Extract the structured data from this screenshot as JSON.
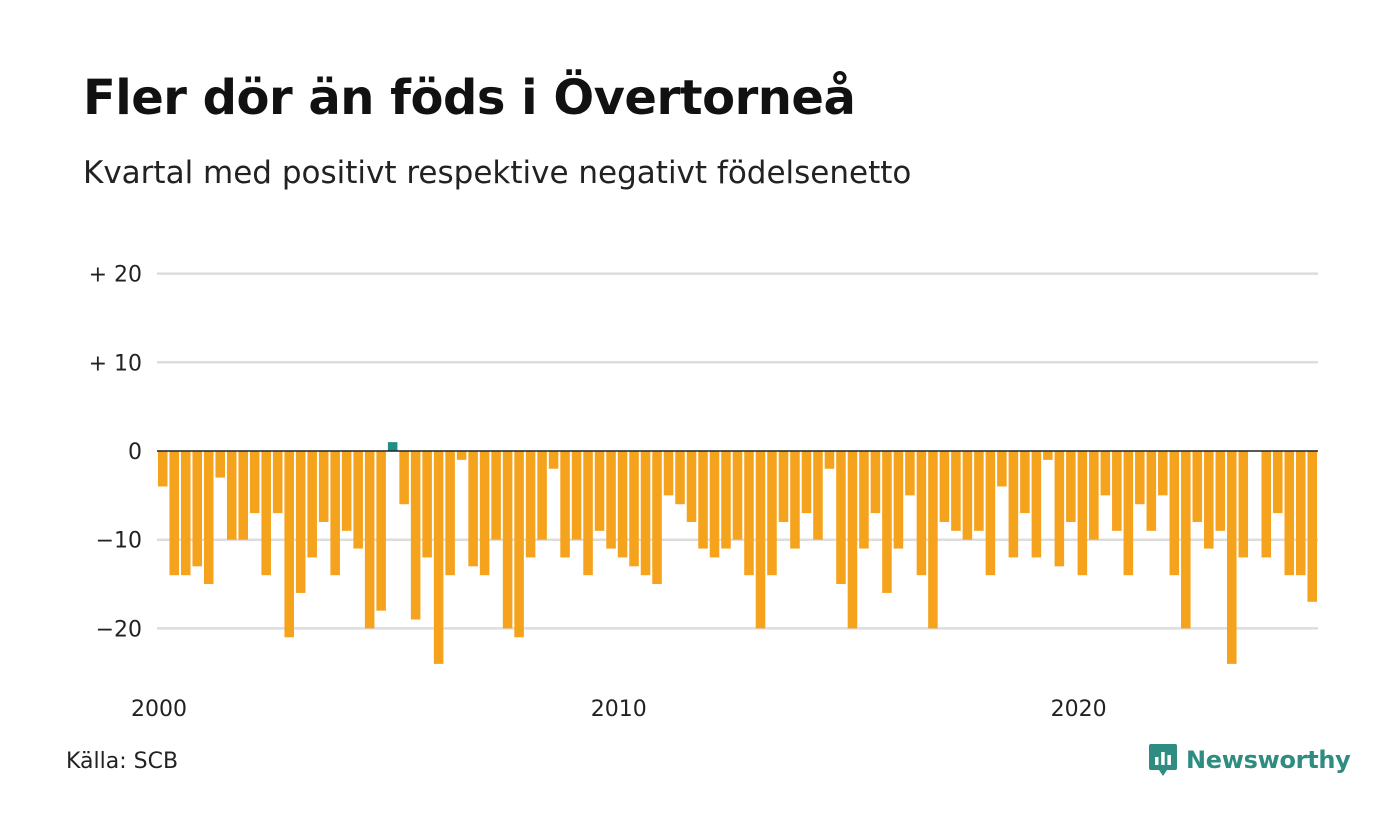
{
  "title": "Fler dör än föds i Övertorneå",
  "subtitle": "Kvartal med positivt respektive negativt födelsenetto",
  "source": "Källa: SCB",
  "logo": {
    "text": "Newsworthy",
    "icon": "newsworthy-chart-icon"
  },
  "colors": {
    "negative": "#f5a21d",
    "positive": "#1f8f86",
    "grid": "#dddddd",
    "zero": "#222222"
  },
  "chart_data": {
    "type": "bar",
    "title": "Fler dör än föds i Övertorneå",
    "subtitle": "Kvartal med positivt respektive negativt födelsenetto",
    "ylim": [
      -25,
      22
    ],
    "y_ticks": [
      {
        "value": 20,
        "label": "+ 20"
      },
      {
        "value": 10,
        "label": "+ 10"
      },
      {
        "value": 0,
        "label": "0"
      },
      {
        "value": -10,
        "label": "−10"
      },
      {
        "value": -20,
        "label": "−20"
      }
    ],
    "x_ticks": [
      {
        "value": "2000",
        "label": "2000"
      },
      {
        "value": "2010",
        "label": "2010"
      },
      {
        "value": "2020",
        "label": "2020"
      }
    ],
    "x_start_year": 2000,
    "periods_per_year": 4,
    "grid": true,
    "legend": "none",
    "values": [
      -4,
      -14,
      -14,
      -13,
      -15,
      -3,
      -10,
      -10,
      -7,
      -14,
      -7,
      -21,
      -16,
      -12,
      -8,
      -14,
      -9,
      -11,
      -20,
      -18,
      1,
      -6,
      -19,
      -12,
      -24,
      -14,
      -1,
      -13,
      -14,
      -10,
      -20,
      -21,
      -12,
      -10,
      -2,
      -12,
      -10,
      -14,
      -9,
      -11,
      -12,
      -13,
      -14,
      -15,
      -5,
      -6,
      -8,
      -11,
      -12,
      -11,
      -10,
      -14,
      -20,
      -14,
      -8,
      -11,
      -7,
      -10,
      -2,
      -15,
      -20,
      -11,
      -7,
      -16,
      -11,
      -5,
      -14,
      -20,
      -8,
      -9,
      -10,
      -9,
      -14,
      -4,
      -12,
      -7,
      -12,
      -1,
      -13,
      -8,
      -14,
      -10,
      -5,
      -9,
      -14,
      -6,
      -9,
      -5,
      -14,
      -20,
      -8,
      -11,
      -9,
      -24,
      -12,
      0,
      -12,
      -7,
      -14,
      -14,
      -17
    ]
  }
}
